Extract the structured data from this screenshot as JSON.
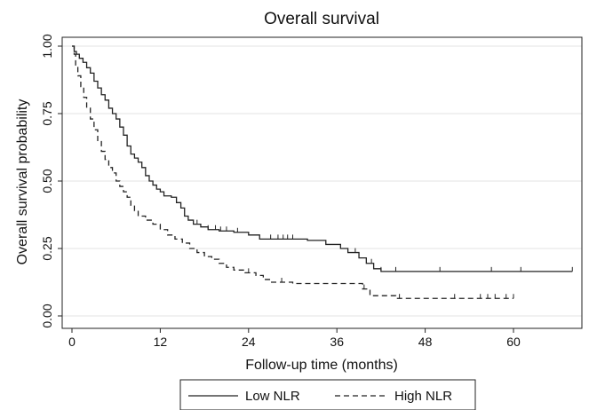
{
  "chart_data": {
    "type": "line",
    "title": "Overall survival",
    "xlabel": "Follow-up time (months)",
    "ylabel": "Overall survival probability",
    "xlim": [
      0,
      70
    ],
    "ylim": [
      0,
      1.05
    ],
    "xticks": [
      0,
      12,
      24,
      36,
      48,
      60
    ],
    "xtick_labels": [
      "0",
      "12",
      "24",
      "36",
      "48",
      "60"
    ],
    "yticks": [
      0,
      0.25,
      0.5,
      0.75,
      1.0
    ],
    "ytick_labels": [
      "0.00",
      "0.25",
      "0.50",
      "0.75",
      "1.00"
    ],
    "grid": true,
    "legend_position": "bottom",
    "step": true,
    "series": [
      {
        "name": "Low NLR",
        "style": "solid",
        "color": "#222222",
        "points": [
          [
            0,
            1.0
          ],
          [
            0.3,
            0.98
          ],
          [
            0.6,
            0.97
          ],
          [
            1.0,
            0.955
          ],
          [
            1.5,
            0.94
          ],
          [
            2.0,
            0.92
          ],
          [
            2.5,
            0.9
          ],
          [
            3.0,
            0.87
          ],
          [
            3.5,
            0.845
          ],
          [
            4.0,
            0.82
          ],
          [
            4.5,
            0.8
          ],
          [
            5.0,
            0.77
          ],
          [
            5.5,
            0.75
          ],
          [
            6.0,
            0.73
          ],
          [
            6.5,
            0.7
          ],
          [
            7.0,
            0.67
          ],
          [
            7.5,
            0.63
          ],
          [
            8.0,
            0.6
          ],
          [
            8.5,
            0.585
          ],
          [
            9.0,
            0.57
          ],
          [
            9.5,
            0.55
          ],
          [
            10.0,
            0.52
          ],
          [
            10.5,
            0.5
          ],
          [
            11.0,
            0.485
          ],
          [
            11.5,
            0.47
          ],
          [
            12.0,
            0.46
          ],
          [
            12.5,
            0.445
          ],
          [
            13.5,
            0.44
          ],
          [
            14.2,
            0.42
          ],
          [
            14.8,
            0.4
          ],
          [
            15.3,
            0.37
          ],
          [
            15.8,
            0.355
          ],
          [
            16.5,
            0.34
          ],
          [
            17.5,
            0.33
          ],
          [
            18.5,
            0.32
          ],
          [
            20.0,
            0.315
          ],
          [
            22.0,
            0.31
          ],
          [
            24.0,
            0.3
          ],
          [
            25.5,
            0.285
          ],
          [
            32.0,
            0.28
          ],
          [
            34.5,
            0.265
          ],
          [
            36.5,
            0.25
          ],
          [
            37.5,
            0.235
          ],
          [
            39.0,
            0.215
          ],
          [
            40.0,
            0.195
          ],
          [
            41.0,
            0.175
          ],
          [
            42.0,
            0.165
          ],
          [
            68.0,
            0.165
          ]
        ],
        "censor": [
          17,
          18.5,
          19.5,
          20.2,
          21,
          22.5,
          27,
          28,
          28.7,
          29.3,
          30,
          38.5,
          40.7,
          42,
          44,
          50,
          57,
          61,
          68
        ]
      },
      {
        "name": "High NLR",
        "style": "dashed",
        "color": "#222222",
        "points": [
          [
            0,
            1.0
          ],
          [
            0.3,
            0.97
          ],
          [
            0.5,
            0.93
          ],
          [
            0.8,
            0.89
          ],
          [
            1.2,
            0.85
          ],
          [
            1.6,
            0.81
          ],
          [
            2.0,
            0.77
          ],
          [
            2.5,
            0.73
          ],
          [
            3.0,
            0.69
          ],
          [
            3.5,
            0.65
          ],
          [
            4.0,
            0.61
          ],
          [
            4.5,
            0.58
          ],
          [
            5.0,
            0.55
          ],
          [
            5.5,
            0.53
          ],
          [
            6.0,
            0.5
          ],
          [
            6.5,
            0.48
          ],
          [
            7.0,
            0.46
          ],
          [
            7.5,
            0.44
          ],
          [
            8.0,
            0.41
          ],
          [
            8.5,
            0.39
          ],
          [
            9.0,
            0.37
          ],
          [
            10.0,
            0.355
          ],
          [
            11.0,
            0.34
          ],
          [
            12.0,
            0.32
          ],
          [
            13.0,
            0.3
          ],
          [
            14.0,
            0.285
          ],
          [
            15.0,
            0.27
          ],
          [
            16.0,
            0.25
          ],
          [
            17.0,
            0.235
          ],
          [
            18.0,
            0.22
          ],
          [
            19.0,
            0.21
          ],
          [
            20.0,
            0.195
          ],
          [
            21.0,
            0.18
          ],
          [
            22.0,
            0.17
          ],
          [
            23.5,
            0.16
          ],
          [
            25.0,
            0.15
          ],
          [
            26.0,
            0.135
          ],
          [
            27.0,
            0.125
          ],
          [
            30.0,
            0.12
          ],
          [
            39.5,
            0.1
          ],
          [
            40.5,
            0.075
          ],
          [
            44.0,
            0.065
          ],
          [
            60.0,
            0.065
          ]
        ],
        "censor": [
          24,
          28.5,
          39.7,
          44.5,
          52,
          55.5,
          56.5,
          57.5,
          59,
          60
        ]
      }
    ]
  }
}
